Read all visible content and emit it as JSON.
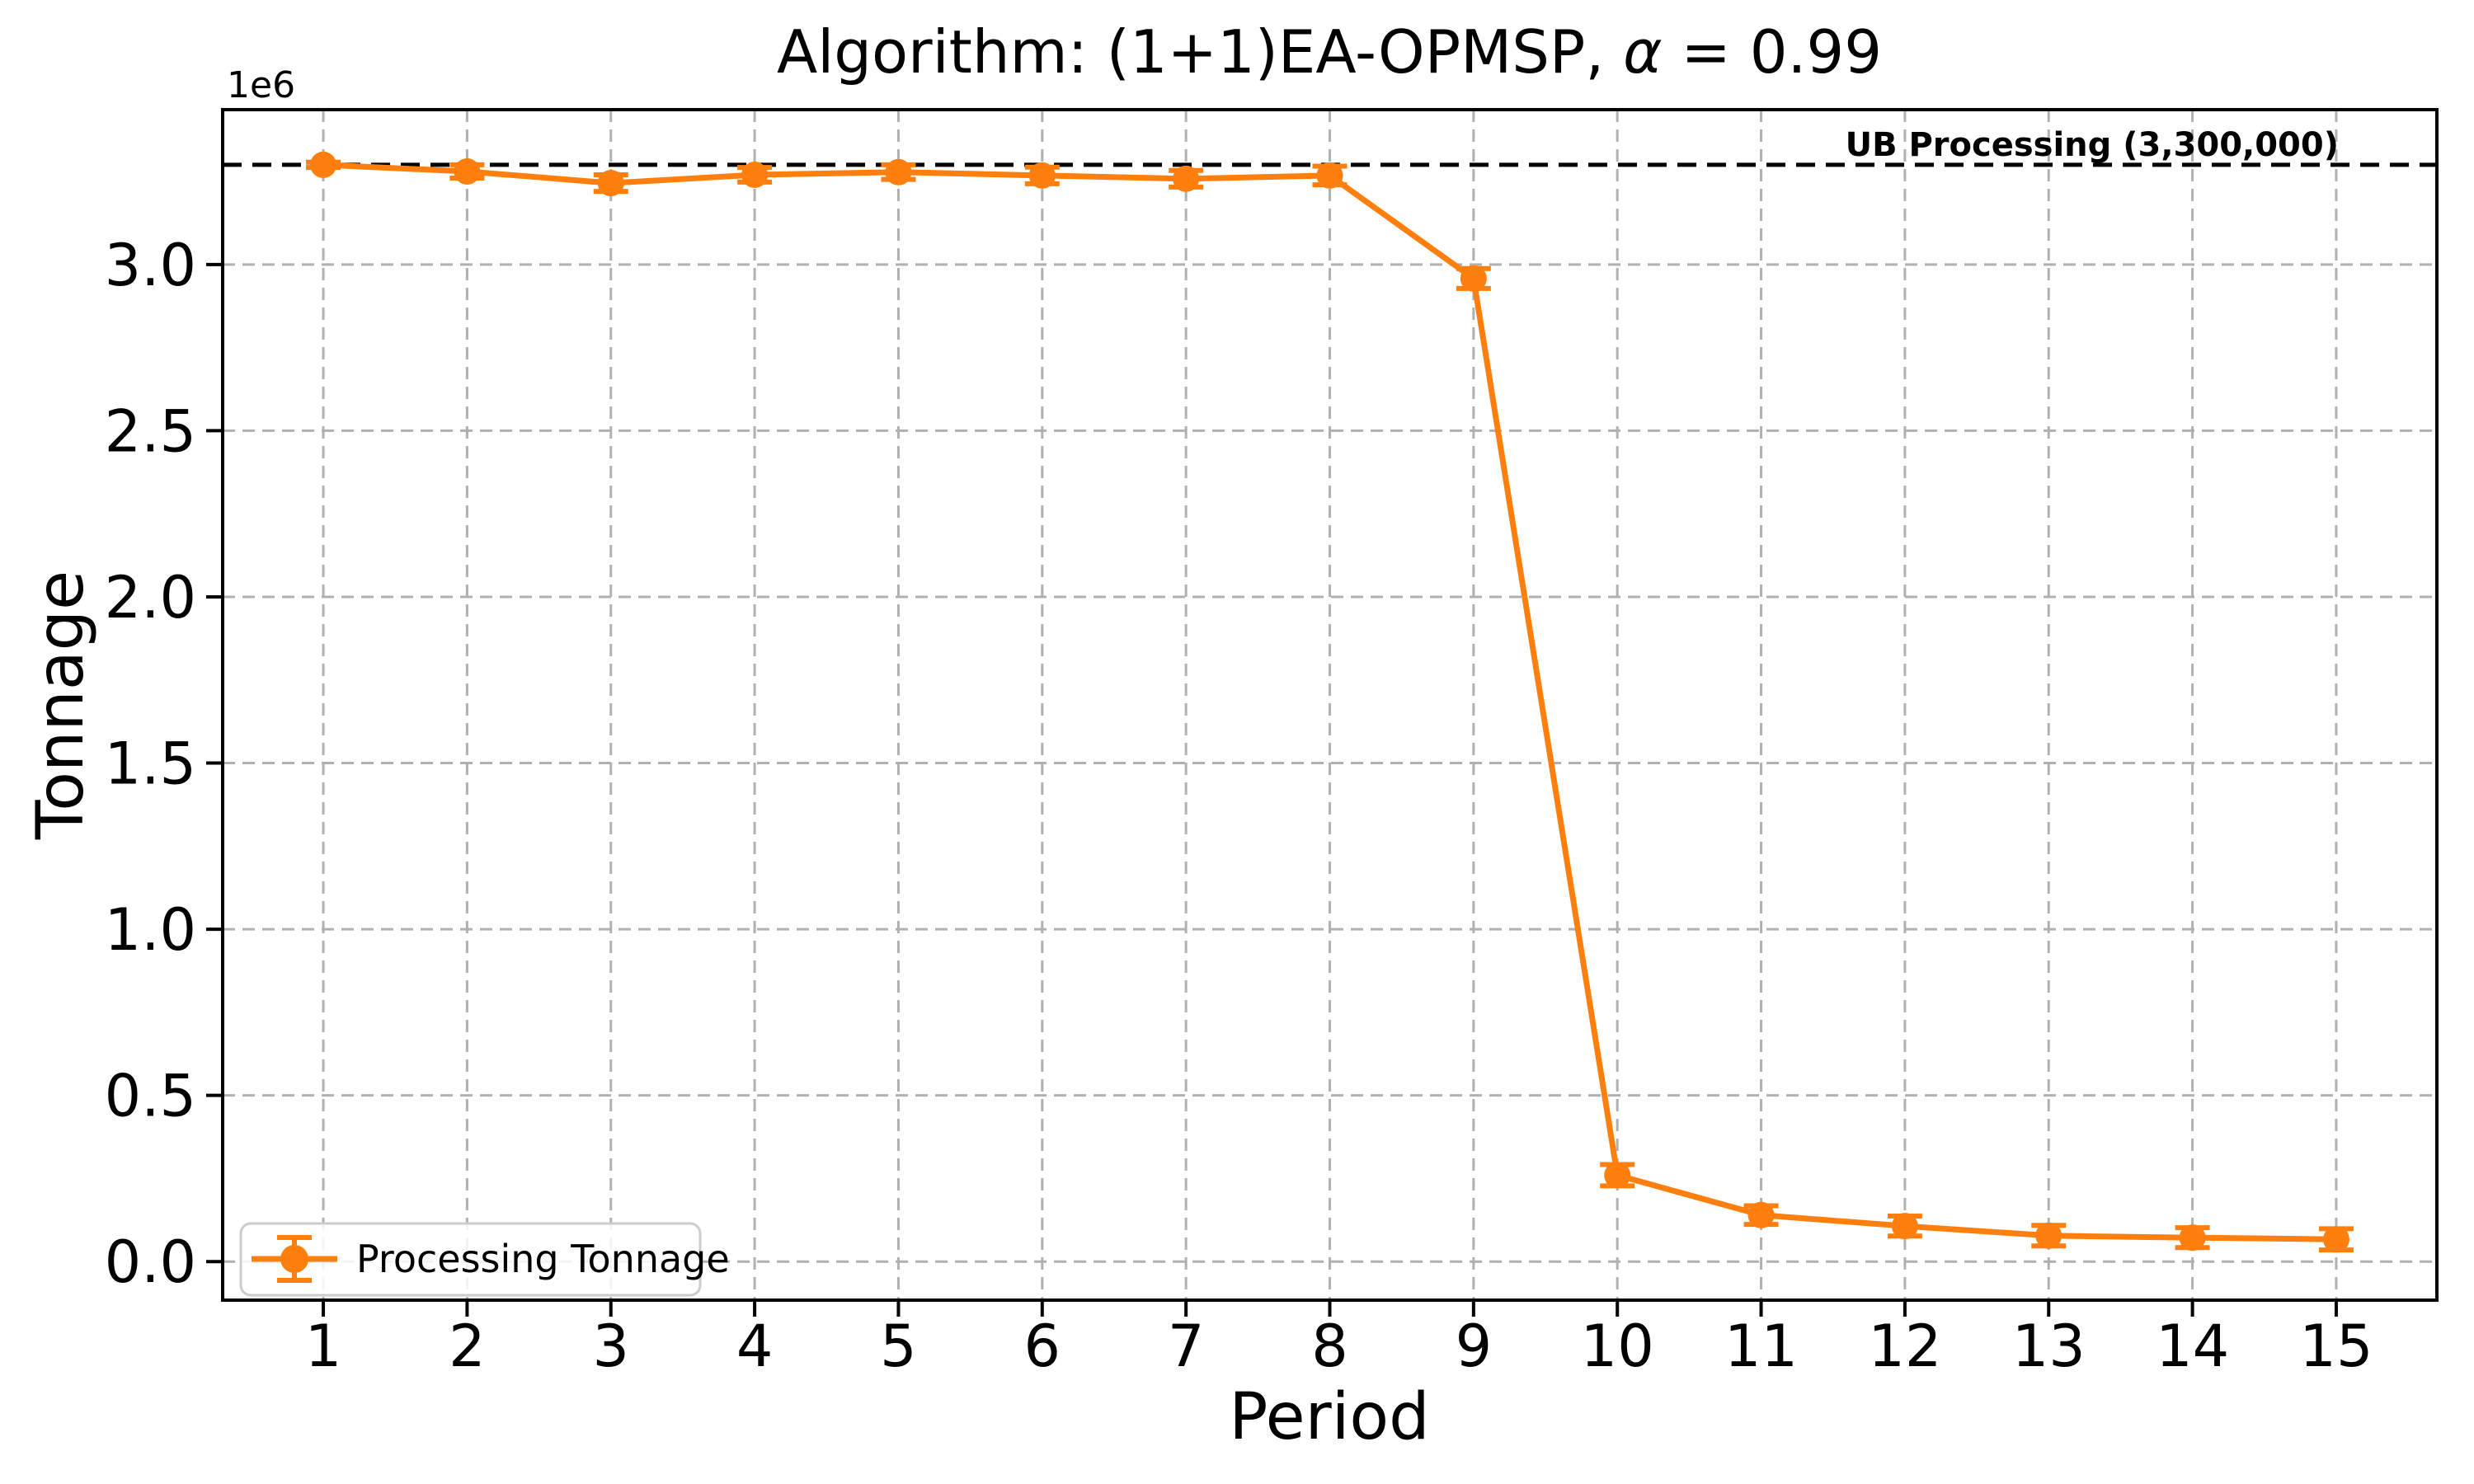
{
  "chart_data": {
    "type": "line",
    "title": "Algorithm: (1+1)EA-OPMSP, α = 0.99",
    "title_parts": {
      "prefix": "Algorithm: (1+1)EA-OPMSP, ",
      "alpha": "α",
      "suffix": " = 0.99"
    },
    "xlabel": "Period",
    "ylabel": "Tonnage",
    "axis_offset_label": "1e6",
    "x": [
      1,
      2,
      3,
      4,
      5,
      6,
      7,
      8,
      9,
      10,
      11,
      12,
      13,
      14,
      15
    ],
    "series": [
      {
        "name": "Processing Tonnage",
        "color": "#ff7f0e",
        "values": [
          3300000,
          3280000,
          3245000,
          3270000,
          3278000,
          3268000,
          3258000,
          3268000,
          2958000,
          260000,
          140000,
          107000,
          78000,
          72000,
          67000
        ],
        "errors": [
          8000,
          20000,
          25000,
          22000,
          22000,
          25000,
          25000,
          28000,
          30000,
          32000,
          28000,
          30000,
          31000,
          30000,
          32000
        ]
      }
    ],
    "reference_line": {
      "label": "UB Processing (3,300,000)",
      "value": 3300000,
      "color": "#000000",
      "style": "dashed"
    },
    "legend": {
      "label": "Processing Tonnage",
      "position": "lower-left"
    },
    "grid": true,
    "xlim": [
      0.3,
      15.7
    ],
    "ylim": [
      -116000,
      3466000
    ],
    "xticks": {
      "values": [
        1,
        2,
        3,
        4,
        5,
        6,
        7,
        8,
        9,
        10,
        11,
        12,
        13,
        14,
        15
      ],
      "labels": [
        "1",
        "2",
        "3",
        "4",
        "5",
        "6",
        "7",
        "8",
        "9",
        "10",
        "11",
        "12",
        "13",
        "14",
        "15"
      ]
    },
    "yticks": {
      "values": [
        0,
        500000,
        1000000,
        1500000,
        2000000,
        2500000,
        3000000
      ],
      "labels": [
        "0.0",
        "0.5",
        "1.0",
        "1.5",
        "2.0",
        "2.5",
        "3.0"
      ]
    },
    "colors": {
      "grid": "#b0b0b0",
      "axis": "#000000",
      "background": "#ffffff",
      "legend_border": "#cccccc"
    }
  }
}
